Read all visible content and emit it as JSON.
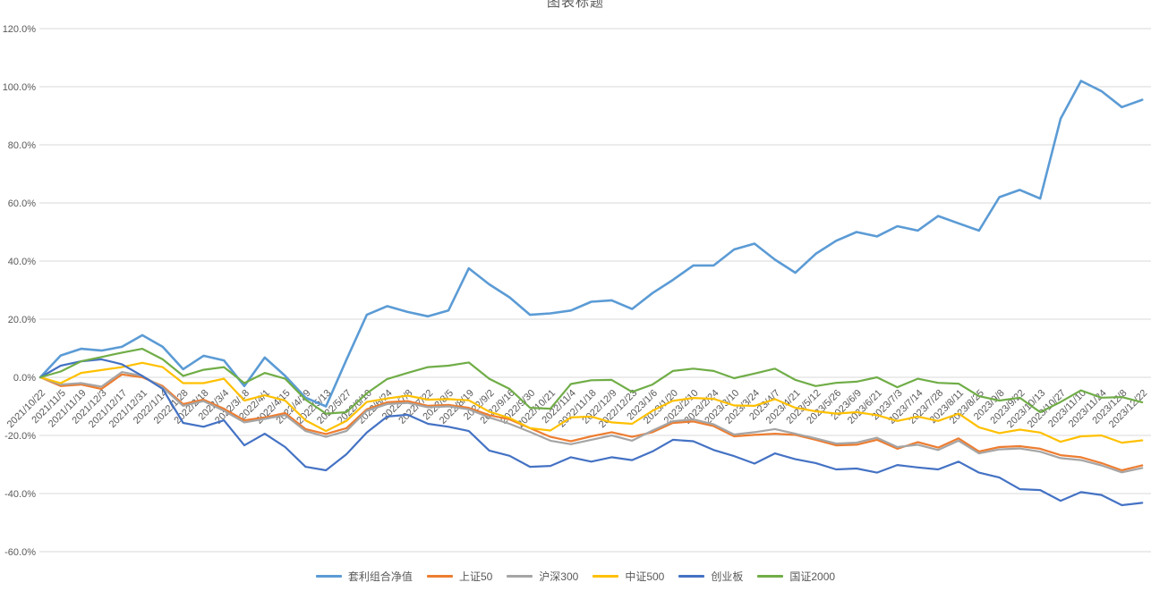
{
  "title": "图表标题",
  "chart_data": {
    "type": "line",
    "title": "图表标题",
    "xlabel": "",
    "ylabel": "",
    "ylim": [
      -60,
      120
    ],
    "y_tick_step": 20,
    "y_tick_labels": [
      "120.0%",
      "100.0%",
      "80.0%",
      "60.0%",
      "40.0%",
      "20.0%",
      "0.0%",
      "-20.0%",
      "-40.0%",
      "-60.0%"
    ],
    "grid": "horizontal",
    "legend_position": "bottom-center",
    "x": [
      "2021/10/22",
      "2021/11/5",
      "2021/11/19",
      "2021/12/3",
      "2021/12/17",
      "2021/12/31",
      "2022/1/14",
      "2022/1/28",
      "2022/2/18",
      "2022/3/4",
      "2022/3/18",
      "2022/4/1",
      "2022/4/15",
      "2022/4/29",
      "2022/5/13",
      "2022/5/27",
      "2022/6/10",
      "2022/6/24",
      "2022/7/8",
      "2022/7/22",
      "2022/8/5",
      "2022/8/19",
      "2022/9/2",
      "2022/9/16",
      "2022/9/30",
      "2022/10/21",
      "2022/11/4",
      "2022/11/18",
      "2022/12/9",
      "2022/12/23",
      "2023/1/6",
      "2023/1/20",
      "2023/2/10",
      "2023/2/24",
      "2023/3/10",
      "2023/3/24",
      "2023/4/7",
      "2023/4/21",
      "2023/5/12",
      "2023/5/26",
      "2023/6/9",
      "2023/6/21",
      "2023/7/3",
      "2023/7/14",
      "2023/7/28",
      "2023/8/11",
      "2023/8/25",
      "2023/9/8",
      "2023/9/22",
      "2023/10/13",
      "2023/10/27",
      "2023/11/10",
      "2023/11/24",
      "2023/12/8",
      "2023/12/22"
    ],
    "unit": "percent",
    "series": [
      {
        "name": "套利组合净值",
        "color": "#5B9BD5",
        "width": 2.6,
        "values": [
          0,
          7.5,
          9.8,
          9.2,
          10.5,
          14.5,
          10.5,
          2.8,
          7.4,
          5.8,
          -3,
          6.8,
          0.5,
          -7,
          -10,
          6,
          21.5,
          24.5,
          22.5,
          21,
          23,
          37.5,
          32,
          27.5,
          21.5,
          22,
          23,
          26,
          26.5,
          23.5,
          29,
          33.5,
          38.5,
          38.5,
          44,
          46,
          40.5,
          36,
          42.5,
          47,
          50,
          48.5,
          52,
          50.5,
          55.5,
          53,
          50.5,
          62,
          64.5,
          61.5,
          89,
          102,
          98.5,
          93,
          95.5
        ]
      },
      {
        "name": "上证50",
        "color": "#ED7D31",
        "width": 2.2,
        "values": [
          0,
          -3,
          -2.5,
          -4,
          1,
          0,
          -3,
          -9.2,
          -7.7,
          -10.8,
          -14.8,
          -13.8,
          -12.3,
          -17.8,
          -19.5,
          -17.5,
          -11,
          -8.6,
          -8.2,
          -9.8,
          -9.5,
          -10.5,
          -13,
          -14.5,
          -17.5,
          -20.5,
          -22,
          -20.3,
          -18.9,
          -20.5,
          -18.9,
          -15.7,
          -15.2,
          -16.8,
          -20.3,
          -19.8,
          -19.4,
          -19.8,
          -21.5,
          -23.4,
          -23.2,
          -21.5,
          -24.6,
          -22.3,
          -24.2,
          -21,
          -25.5,
          -24,
          -23.7,
          -24.6,
          -26.8,
          -27.5,
          -29.5,
          -32,
          -30.3
        ]
      },
      {
        "name": "沪深300",
        "color": "#A5A5A5",
        "width": 2.2,
        "values": [
          0,
          -2.5,
          -2,
          -3.2,
          1.8,
          0.5,
          -3.5,
          -9.8,
          -8.2,
          -11.5,
          -15.5,
          -14.3,
          -13,
          -18.5,
          -20.5,
          -18.5,
          -11.5,
          -9.2,
          -8.8,
          -10.3,
          -10,
          -11,
          -13.8,
          -16,
          -18.8,
          -21.8,
          -23,
          -21.5,
          -20,
          -21.8,
          -18.3,
          -15.1,
          -14.5,
          -16.2,
          -19.7,
          -18.9,
          -17.8,
          -19.4,
          -21,
          -22.8,
          -22.5,
          -20.8,
          -24,
          -23.2,
          -25,
          -21.8,
          -26.2,
          -24.8,
          -24.5,
          -25.6,
          -27.8,
          -28.5,
          -30.3,
          -32.7,
          -31.2
        ]
      },
      {
        "name": "中证500",
        "color": "#FFC000",
        "width": 2.2,
        "values": [
          0,
          -2,
          1.5,
          2.5,
          3.5,
          5,
          3.5,
          -2,
          -2,
          -0.5,
          -8,
          -6.2,
          -8,
          -14.8,
          -18.5,
          -15,
          -8.5,
          -7.3,
          -6.3,
          -7.7,
          -7.5,
          -7.9,
          -11.8,
          -14,
          -17.5,
          -18.3,
          -13.8,
          -13.5,
          -15.5,
          -16,
          -11.5,
          -8.1,
          -7.1,
          -7.4,
          -9.7,
          -9.8,
          -7.5,
          -10.5,
          -11.7,
          -12.5,
          -12,
          -13,
          -15,
          -13.5,
          -15,
          -12.5,
          -17.2,
          -19.2,
          -18,
          -19,
          -22.2,
          -20.3,
          -20,
          -22.5,
          -21.7
        ]
      },
      {
        "name": "创业板",
        "color": "#4472C4",
        "width": 2.2,
        "values": [
          0,
          4,
          5.5,
          6.2,
          4.5,
          0.5,
          -4,
          -15.7,
          -17,
          -14.8,
          -23.4,
          -19.4,
          -24,
          -30.8,
          -32,
          -26.5,
          -19,
          -13.5,
          -12.9,
          -16,
          -17,
          -18.5,
          -25.2,
          -27,
          -30.8,
          -30.5,
          -27.5,
          -29,
          -27.5,
          -28.5,
          -25.5,
          -21.5,
          -22,
          -25,
          -27.1,
          -29.7,
          -26.2,
          -28.2,
          -29.5,
          -31.7,
          -31.4,
          -32.8,
          -30.2,
          -31,
          -31.7,
          -29,
          -32.8,
          -34.5,
          -38.5,
          -38.8,
          -42.5,
          -39.5,
          -40.5,
          -44,
          -43.2
        ]
      },
      {
        "name": "国证2000",
        "color": "#70AD47",
        "width": 2.2,
        "values": [
          0,
          2,
          5.5,
          7,
          8.5,
          9.8,
          6.2,
          0.5,
          2.6,
          3.5,
          -2,
          1.5,
          -0.5,
          -7.7,
          -12.5,
          -12,
          -5.5,
          -0.6,
          1.5,
          3.5,
          4,
          5.1,
          -0.5,
          -4,
          -10.5,
          -10.8,
          -2.3,
          -1,
          -0.9,
          -5,
          -2.5,
          2.2,
          3,
          2.2,
          -0.3,
          1.3,
          3,
          -0.9,
          -3,
          -1.9,
          -1.5,
          0,
          -3.4,
          -0.5,
          -1.9,
          -2.2,
          -6.5,
          -8,
          -7,
          -12,
          -8.5,
          -4.5,
          -7,
          -6.8,
          -8.6
        ]
      }
    ]
  },
  "colors": {
    "gridline": "#D9D9D9",
    "axis_text": "#595959",
    "title_text": "#595959",
    "background": "#FFFFFF"
  }
}
